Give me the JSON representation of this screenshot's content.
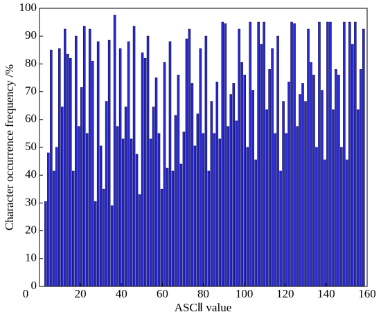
{
  "chart_data": {
    "type": "bar",
    "xlabel": "ASCⅡ value",
    "ylabel": "Character occurrence frequency /%",
    "color": "#2b2bd6",
    "edgecolor": "#141470",
    "xlim": [
      0,
      160
    ],
    "xticks": [
      0,
      20,
      40,
      60,
      80,
      100,
      120,
      140,
      160
    ],
    "ylim": [
      0,
      100
    ],
    "yticks": [
      0,
      10,
      20,
      30,
      40,
      50,
      60,
      70,
      80,
      90,
      100
    ],
    "x": [
      3,
      4.35,
      5.7,
      7.05,
      8.4,
      9.75,
      11.1,
      12.45,
      13.8,
      15.15,
      16.5,
      17.85,
      19.2,
      20.55,
      21.9,
      23.25,
      24.6,
      25.95,
      27.3,
      28.65,
      30,
      31.35,
      32.7,
      34.05,
      35.4,
      36.75,
      38.1,
      39.45,
      40.8,
      42.15,
      43.5,
      44.85,
      46.2,
      47.55,
      48.9,
      50.25,
      51.6,
      52.95,
      54.3,
      55.65,
      57,
      58.35,
      59.7,
      61.05,
      62.4,
      63.75,
      65.1,
      66.45,
      67.8,
      69.15,
      70.5,
      71.85,
      73.2,
      74.55,
      75.9,
      77.25,
      78.6,
      79.95,
      81.3,
      82.65,
      84,
      85.35,
      86.7,
      88.05,
      89.4,
      90.75,
      92.1,
      93.45,
      94.8,
      96.15,
      97.5,
      98.85,
      100.2,
      101.55,
      102.9,
      104.25,
      105.6,
      106.95,
      108.3,
      109.65,
      111,
      112.35,
      113.7,
      115.05,
      116.4,
      117.75,
      119.1,
      120.45,
      121.8,
      123.15,
      124.5,
      125.85,
      127.2,
      128.55,
      129.9,
      131.25,
      132.6,
      133.95,
      135.3,
      136.65,
      138,
      139.35,
      140.7,
      142.05,
      143.4,
      144.75,
      146.1,
      147.45,
      148.8,
      150.15,
      151.5,
      152.85,
      154.2,
      155.55,
      156.9,
      158.25
    ],
    "values": [
      30.5,
      48,
      85,
      41.5,
      50,
      85.5,
      64.5,
      92.5,
      83.5,
      82,
      41.5,
      90,
      57.5,
      71.5,
      93.5,
      55,
      92.5,
      81,
      30.5,
      88,
      50.5,
      35,
      66.5,
      88.5,
      29,
      97.5,
      57.5,
      85.5,
      53,
      64.5,
      88,
      53,
      93.5,
      47.5,
      33,
      84,
      82,
      90,
      53,
      64.5,
      75,
      55,
      35,
      80.5,
      42.5,
      88,
      41.5,
      61.5,
      76,
      44,
      55.5,
      89,
      92.5,
      73,
      50.5,
      62,
      85.5,
      55,
      90,
      41.5,
      66.5,
      55,
      73.5,
      53,
      95,
      94.5,
      57.5,
      69,
      73,
      59.5,
      92.5,
      80.5,
      76,
      50,
      95,
      70.5,
      45.5,
      95,
      87,
      95,
      63.5,
      78,
      85.5,
      55,
      90,
      41.5,
      66.5,
      55,
      73.5,
      95,
      94.5,
      57.5,
      69,
      73,
      66.5,
      92.5,
      80.5,
      76,
      50,
      95,
      70.5,
      45.5,
      95,
      95,
      63.5,
      78,
      76,
      50,
      95,
      45.5,
      95,
      87,
      95,
      63.5,
      78,
      92.5
    ]
  }
}
